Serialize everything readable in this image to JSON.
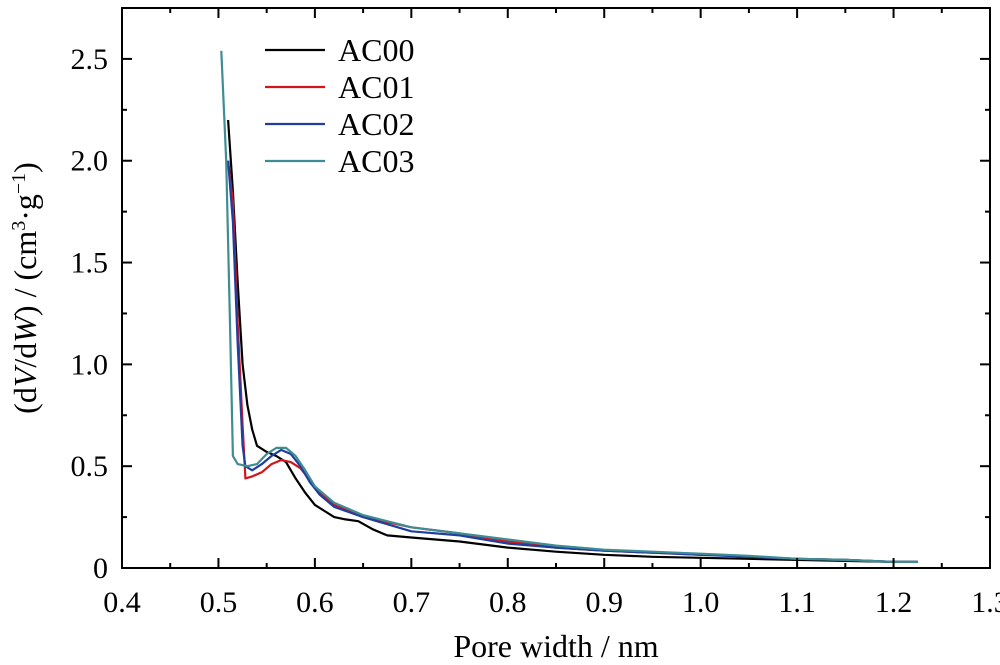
{
  "chart_data": {
    "type": "line",
    "xlabel": "Pore width / nm",
    "ylabel": {
      "parts": [
        {
          "text": "(d",
          "style": "normal"
        },
        {
          "text": "V",
          "style": "italic"
        },
        {
          "text": "/d",
          "style": "normal"
        },
        {
          "text": "W",
          "style": "italic"
        },
        {
          "text": ") / (cm",
          "style": "normal"
        },
        {
          "text": "3",
          "style": "sup"
        },
        {
          "text": "·g",
          "style": "normal"
        },
        {
          "text": "−1",
          "style": "sup"
        },
        {
          "text": ")",
          "style": "normal"
        }
      ]
    },
    "xlim": [
      0.4,
      1.3
    ],
    "ylim": [
      0,
      2.75
    ],
    "xticks": [
      "0.4",
      "0.5",
      "0.6",
      "0.7",
      "0.8",
      "0.9",
      "1.0",
      "1.1",
      "1.2",
      "1.3"
    ],
    "yticks": [
      "0",
      "0.5",
      "1.0",
      "1.5",
      "2.0",
      "2.5"
    ],
    "legend_position": "top-left",
    "grid": false,
    "series": [
      {
        "name": "AC00",
        "color": "#000000",
        "points": [
          [
            0.51,
            2.2
          ],
          [
            0.515,
            1.85
          ],
          [
            0.52,
            1.4
          ],
          [
            0.525,
            1.0
          ],
          [
            0.53,
            0.8
          ],
          [
            0.535,
            0.68
          ],
          [
            0.54,
            0.6
          ],
          [
            0.55,
            0.57
          ],
          [
            0.56,
            0.55
          ],
          [
            0.57,
            0.52
          ],
          [
            0.58,
            0.44
          ],
          [
            0.59,
            0.37
          ],
          [
            0.6,
            0.31
          ],
          [
            0.61,
            0.28
          ],
          [
            0.62,
            0.25
          ],
          [
            0.63,
            0.24
          ],
          [
            0.645,
            0.23
          ],
          [
            0.66,
            0.19
          ],
          [
            0.675,
            0.16
          ],
          [
            0.7,
            0.15
          ],
          [
            0.75,
            0.13
          ],
          [
            0.8,
            0.1
          ],
          [
            0.85,
            0.08
          ],
          [
            0.9,
            0.065
          ],
          [
            0.95,
            0.055
          ],
          [
            1.0,
            0.05
          ],
          [
            1.05,
            0.045
          ],
          [
            1.1,
            0.04
          ],
          [
            1.15,
            0.035
          ],
          [
            1.2,
            0.03
          ],
          [
            1.225,
            0.03
          ]
        ]
      },
      {
        "name": "AC01",
        "color": "#d0161c",
        "points": [
          [
            0.51,
            2.0
          ],
          [
            0.515,
            1.8
          ],
          [
            0.52,
            1.2
          ],
          [
            0.525,
            0.7
          ],
          [
            0.528,
            0.44
          ],
          [
            0.535,
            0.45
          ],
          [
            0.545,
            0.47
          ],
          [
            0.555,
            0.51
          ],
          [
            0.565,
            0.53
          ],
          [
            0.575,
            0.52
          ],
          [
            0.585,
            0.49
          ],
          [
            0.595,
            0.43
          ],
          [
            0.605,
            0.37
          ],
          [
            0.62,
            0.31
          ],
          [
            0.65,
            0.25
          ],
          [
            0.7,
            0.2
          ],
          [
            0.75,
            0.17
          ],
          [
            0.8,
            0.13
          ],
          [
            0.85,
            0.1
          ],
          [
            0.9,
            0.085
          ],
          [
            0.95,
            0.075
          ],
          [
            1.0,
            0.065
          ],
          [
            1.02,
            0.065
          ],
          [
            1.05,
            0.055
          ],
          [
            1.1,
            0.045
          ],
          [
            1.15,
            0.04
          ],
          [
            1.2,
            0.03
          ],
          [
            1.225,
            0.03
          ]
        ]
      },
      {
        "name": "AC02",
        "color": "#1f3ea0",
        "points": [
          [
            0.51,
            2.0
          ],
          [
            0.515,
            1.7
          ],
          [
            0.52,
            1.1
          ],
          [
            0.525,
            0.6
          ],
          [
            0.528,
            0.5
          ],
          [
            0.535,
            0.48
          ],
          [
            0.545,
            0.51
          ],
          [
            0.555,
            0.55
          ],
          [
            0.565,
            0.58
          ],
          [
            0.575,
            0.56
          ],
          [
            0.585,
            0.5
          ],
          [
            0.595,
            0.42
          ],
          [
            0.605,
            0.36
          ],
          [
            0.62,
            0.3
          ],
          [
            0.65,
            0.25
          ],
          [
            0.7,
            0.18
          ],
          [
            0.75,
            0.16
          ],
          [
            0.8,
            0.12
          ],
          [
            0.85,
            0.1
          ],
          [
            0.9,
            0.085
          ],
          [
            0.95,
            0.075
          ],
          [
            1.0,
            0.065
          ],
          [
            1.05,
            0.055
          ],
          [
            1.1,
            0.045
          ],
          [
            1.15,
            0.04
          ],
          [
            1.2,
            0.03
          ],
          [
            1.225,
            0.03
          ]
        ]
      },
      {
        "name": "AC03",
        "color": "#3d8d93",
        "points": [
          [
            0.503,
            2.54
          ],
          [
            0.508,
            2.0
          ],
          [
            0.512,
            1.2
          ],
          [
            0.515,
            0.55
          ],
          [
            0.52,
            0.51
          ],
          [
            0.53,
            0.5
          ],
          [
            0.54,
            0.51
          ],
          [
            0.55,
            0.56
          ],
          [
            0.56,
            0.59
          ],
          [
            0.57,
            0.59
          ],
          [
            0.58,
            0.55
          ],
          [
            0.59,
            0.48
          ],
          [
            0.6,
            0.4
          ],
          [
            0.62,
            0.32
          ],
          [
            0.65,
            0.26
          ],
          [
            0.7,
            0.2
          ],
          [
            0.75,
            0.17
          ],
          [
            0.8,
            0.14
          ],
          [
            0.85,
            0.11
          ],
          [
            0.9,
            0.09
          ],
          [
            0.95,
            0.08
          ],
          [
            1.0,
            0.07
          ],
          [
            1.05,
            0.06
          ],
          [
            1.1,
            0.045
          ],
          [
            1.15,
            0.04
          ],
          [
            1.2,
            0.03
          ],
          [
            1.225,
            0.03
          ]
        ]
      }
    ]
  }
}
